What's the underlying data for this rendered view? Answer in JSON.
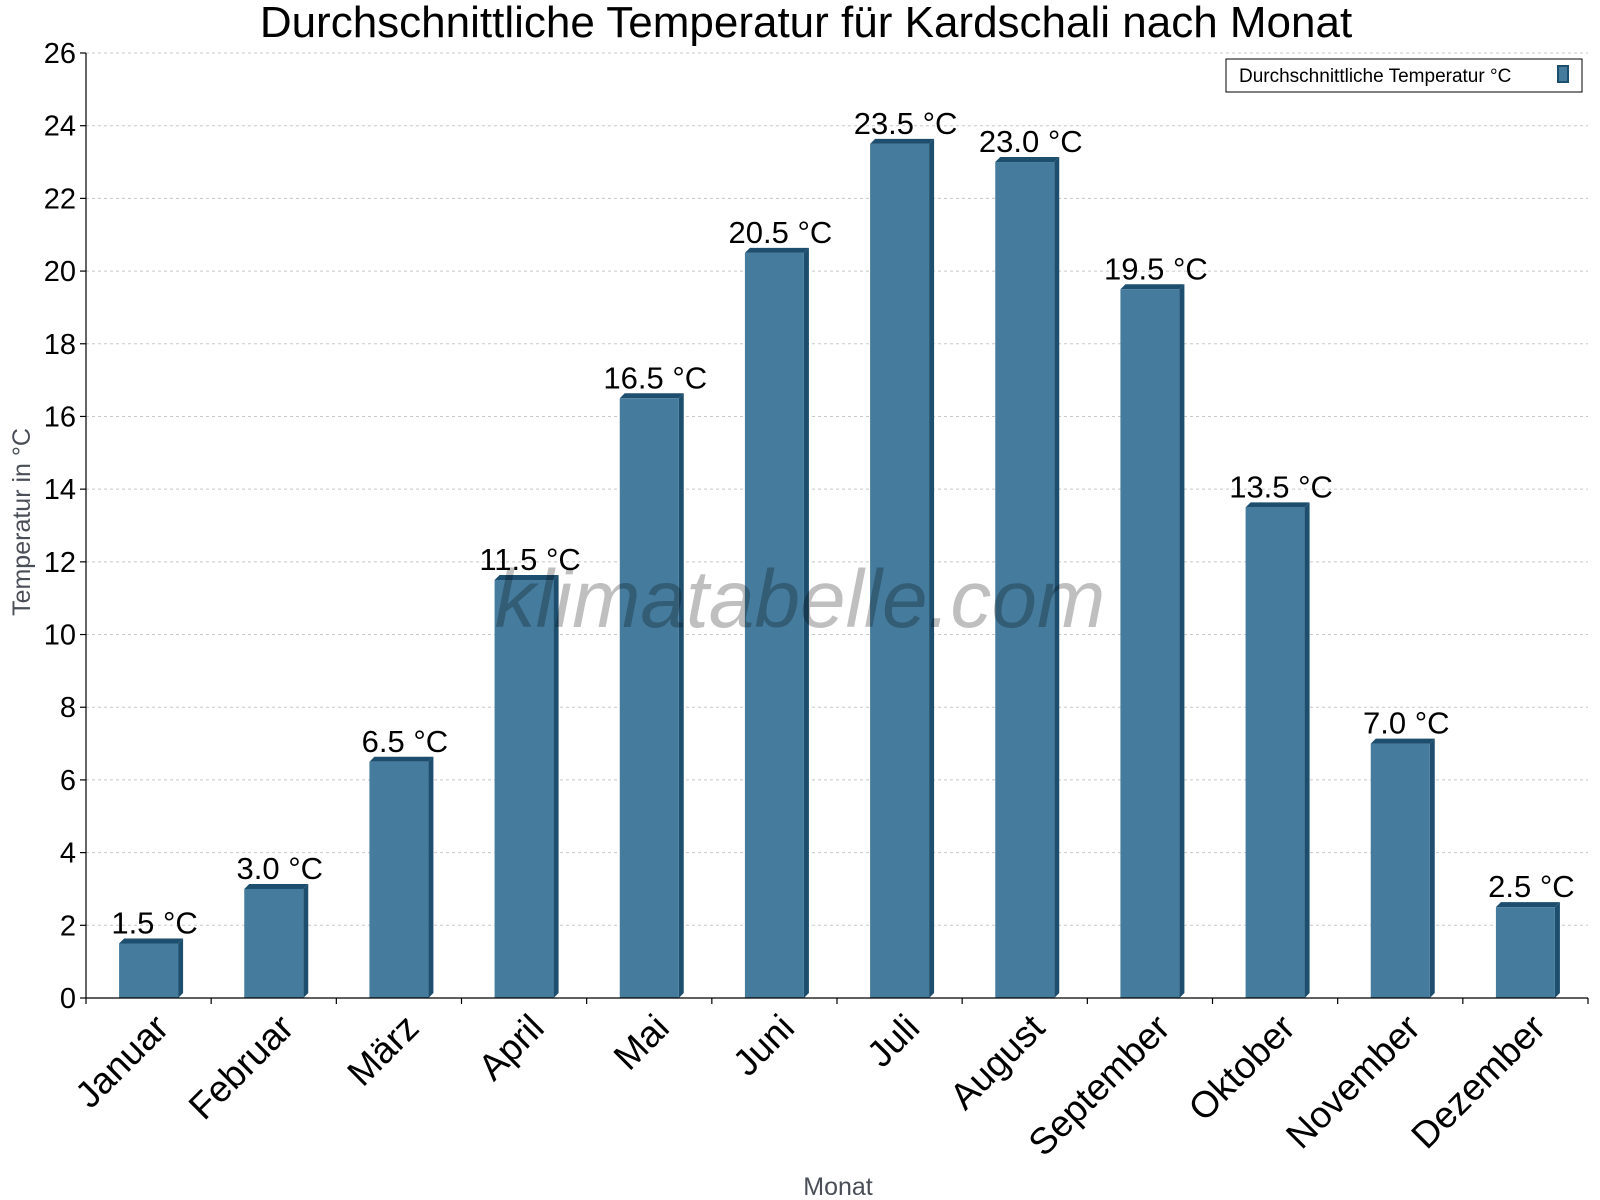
{
  "chart_data": {
    "type": "bar",
    "title": "Durchschnittliche Temperatur für Kardschali nach Monat",
    "xlabel": "Monat",
    "ylabel": "Temperatur in °C",
    "ylim": [
      0,
      26
    ],
    "yticks": [
      "0",
      "2",
      "4",
      "6",
      "8",
      "10",
      "12",
      "14",
      "16",
      "18",
      "20",
      "22",
      "24",
      "26"
    ],
    "grid": true,
    "legend": {
      "position": "top-right",
      "label": "Durchschnittliche Temperatur °C"
    },
    "categories": [
      "Januar",
      "Februar",
      "März",
      "April",
      "Mai",
      "Juni",
      "Juli",
      "August",
      "September",
      "Oktober",
      "November",
      "Dezember"
    ],
    "series": [
      {
        "name": "Durchschnittliche Temperatur °C",
        "color": "#457b9d",
        "values": [
          1.5,
          3.0,
          6.5,
          11.5,
          16.5,
          20.5,
          23.5,
          23.0,
          19.5,
          13.5,
          7.0,
          2.5
        ],
        "labels": [
          "1.5 °C",
          "3.0 °C",
          "6.5 °C",
          "11.5 °C",
          "16.5 °C",
          "20.5 °C",
          "23.5 °C",
          "23.0 °C",
          "19.5 °C",
          "13.5 °C",
          "7.0 °C",
          "2.5 °C"
        ]
      }
    ]
  },
  "watermark": "klimatabelle.com",
  "colors": {
    "bar": "#457b9d",
    "bar_edge": "#1d4e6e"
  }
}
